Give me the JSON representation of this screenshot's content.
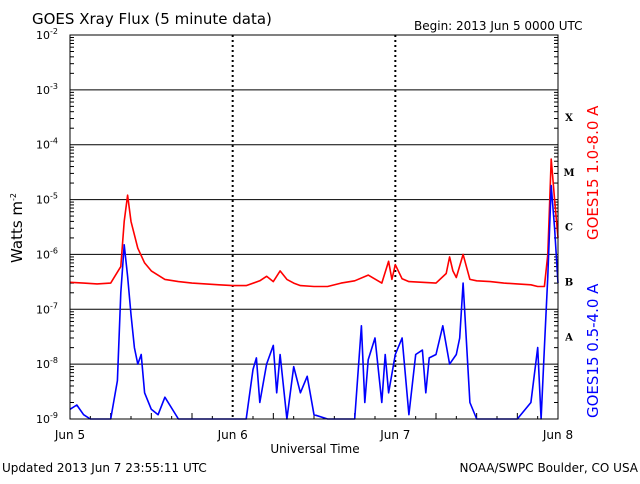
{
  "header": {
    "title": "GOES Xray Flux (5 minute data)",
    "begin": "Begin:  2013 Jun 5 0000 UTC"
  },
  "footer": {
    "updated": "Updated 2013 Jun  7 23:55:11 UTC",
    "credit": "NOAA/SWPC Boulder, CO USA"
  },
  "chart_data": {
    "type": "line",
    "title": "GOES Xray Flux (5 minute data)",
    "ylabel": "Watts m",
    "ylabel_sup": "-2",
    "xlabel": "Universal Time",
    "yscale": "log",
    "ylim": [
      1e-09,
      0.01
    ],
    "y_ticks": [
      {
        "base": "10",
        "exp": "-9"
      },
      {
        "base": "10",
        "exp": "-8"
      },
      {
        "base": "10",
        "exp": "-7"
      },
      {
        "base": "10",
        "exp": "-6"
      },
      {
        "base": "10",
        "exp": "-5"
      },
      {
        "base": "10",
        "exp": "-4"
      },
      {
        "base": "10",
        "exp": "-3"
      },
      {
        "base": "10",
        "exp": "-2"
      }
    ],
    "x_ticks": [
      "Jun 5",
      "Jun 6",
      "Jun 7",
      "Jun 8"
    ],
    "xlim_hours": [
      0,
      72
    ],
    "flare_classes": [
      {
        "label": "A",
        "flux": 3.2e-08
      },
      {
        "label": "B",
        "flux": 3.2e-07
      },
      {
        "label": "C",
        "flux": 3.2e-06
      },
      {
        "label": "M",
        "flux": 3.2e-05
      },
      {
        "label": "X",
        "flux": 0.00032
      }
    ],
    "grid": true,
    "series": [
      {
        "name": "GOES15 1.0-8.0 A",
        "color": "#ff0000",
        "x": [
          0,
          2,
          4,
          6,
          7.5,
          8,
          8.5,
          9,
          10,
          11,
          12,
          14,
          16,
          18,
          20,
          22,
          24,
          26,
          28,
          29,
          30,
          31,
          32,
          33,
          34,
          36,
          38,
          40,
          42,
          44,
          46,
          47,
          47.5,
          48,
          49,
          50,
          52,
          54,
          55.5,
          56,
          56.5,
          57,
          58,
          59,
          60,
          62,
          64,
          66,
          68,
          69,
          70,
          70.5,
          71,
          71.5,
          72
        ],
        "values": [
          3.1e-07,
          3e-07,
          2.9e-07,
          3e-07,
          6e-07,
          4e-06,
          1.2e-05,
          4e-06,
          1.3e-06,
          7e-07,
          5e-07,
          3.5e-07,
          3.2e-07,
          3e-07,
          2.9e-07,
          2.8e-07,
          2.7e-07,
          2.7e-07,
          3.3e-07,
          4e-07,
          3.2e-07,
          5e-07,
          3.5e-07,
          3e-07,
          2.7e-07,
          2.6e-07,
          2.6e-07,
          3e-07,
          3.3e-07,
          4.2e-07,
          3e-07,
          7.5e-07,
          3.5e-07,
          6.5e-07,
          3.6e-07,
          3.2e-07,
          3.1e-07,
          3e-07,
          4.5e-07,
          9e-07,
          5e-07,
          3.8e-07,
          1e-06,
          3.5e-07,
          3.3e-07,
          3.2e-07,
          3e-07,
          2.9e-07,
          2.8e-07,
          2.6e-07,
          2.6e-07,
          1e-06,
          5.5e-05,
          1e-05,
          2e-06
        ]
      },
      {
        "name": "GOES15 0.5-4.0 A",
        "color": "#0000ff",
        "x": [
          0,
          1,
          2,
          3,
          4,
          5,
          6,
          7,
          7.5,
          8,
          8.5,
          9,
          9.5,
          10,
          10.5,
          11,
          12,
          13,
          14,
          16,
          18,
          20,
          22,
          24,
          26,
          27,
          27.5,
          28,
          29,
          30,
          30.5,
          31,
          32,
          33,
          34,
          35,
          36,
          38,
          40,
          42,
          43,
          43.5,
          44,
          45,
          46,
          46.5,
          47,
          48,
          49,
          50,
          51,
          52,
          52.5,
          53,
          54,
          55,
          56,
          57,
          57.5,
          58,
          59,
          60,
          62,
          64,
          66,
          68,
          69,
          69.5,
          70,
          70.5,
          71,
          71.5,
          72
        ],
        "values": [
          1.5e-09,
          1.8e-09,
          1.2e-09,
          1e-09,
          1e-09,
          1e-09,
          1e-09,
          5e-09,
          2e-07,
          1.5e-06,
          4e-07,
          8e-08,
          2e-08,
          1e-08,
          1.5e-08,
          3e-09,
          1.5e-09,
          1.2e-09,
          2.5e-09,
          1e-09,
          1e-09,
          1e-09,
          1e-09,
          1e-09,
          1e-09,
          8e-09,
          1.3e-08,
          2e-09,
          1e-08,
          2.2e-08,
          3e-09,
          1.5e-08,
          1e-09,
          9e-09,
          3e-09,
          6e-09,
          1.2e-09,
          1e-09,
          1e-09,
          1e-09,
          5e-08,
          2e-09,
          1.2e-08,
          3e-08,
          2e-09,
          1.5e-08,
          3e-09,
          1.5e-08,
          3e-08,
          1.2e-09,
          1.5e-08,
          1.8e-08,
          3e-09,
          1.3e-08,
          1.5e-08,
          5e-08,
          1e-08,
          1.5e-08,
          3e-08,
          3e-07,
          2e-09,
          1e-09,
          1e-09,
          1e-09,
          1e-09,
          2e-09,
          2e-08,
          1e-09,
          2e-08,
          4e-07,
          1.8e-05,
          3e-06,
          3e-07
        ]
      }
    ]
  }
}
